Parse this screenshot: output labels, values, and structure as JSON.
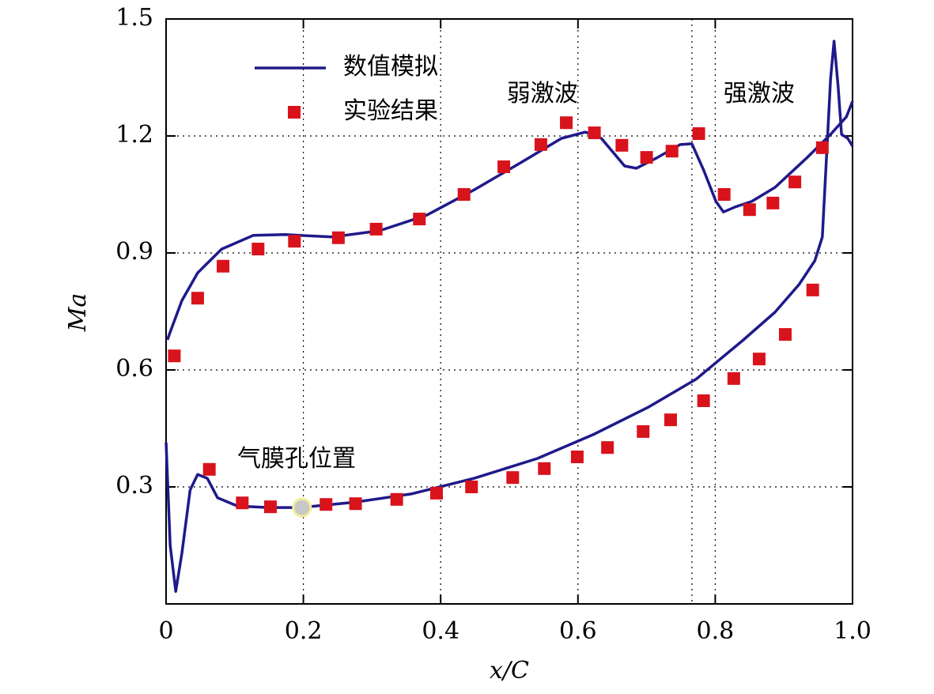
{
  "chart_data": {
    "type": "line",
    "xlabel": "x/C",
    "ylabel": "Ma",
    "xlim": [
      0,
      1
    ],
    "xticks": [
      0,
      0.2,
      0.4,
      0.6,
      0.8,
      {
        "value": 1,
        "label": "1.0"
      }
    ],
    "ylim": [
      0,
      1.5
    ],
    "yticks": [
      0.3,
      0.6,
      0.9,
      1.2,
      1.5
    ],
    "grid": true,
    "legend": "upper left",
    "vlines": [
      0.766
    ],
    "annotations": [
      {
        "text": "弱激波",
        "x": 0.6
      },
      {
        "text": "强激波",
        "x": 0.766
      },
      {
        "text": "气膜孔位置",
        "x": 0.198,
        "y": 0.247
      }
    ],
    "series": [
      {
        "name": "数值模拟",
        "type": "line",
        "color": "#1f1a8a",
        "x": [
          0.002,
          0.006,
          0.023,
          0.046,
          0.081,
          0.127,
          0.173,
          0.242,
          0.311,
          0.38,
          0.449,
          0.518,
          0.576,
          0.611,
          0.634,
          0.668,
          0.685,
          0.714,
          0.749,
          0.766,
          0.783,
          0.801,
          0.812,
          0.829,
          0.853,
          0.887,
          0.933,
          0.968,
          0.991,
          1.0,
          null,
          0,
          0.006,
          0.014,
          0.023,
          0.035,
          0.046,
          0.06,
          0.075,
          0.104,
          0.15,
          0.196,
          0.276,
          0.357,
          0.449,
          0.541,
          0.622,
          0.703,
          0.772,
          0.841,
          0.887,
          0.922,
          0.945,
          0.956,
          0.962,
          0.968,
          0.973,
          0.979,
          0.984,
          0.993,
          1.0
        ],
        "values": [
          0.677,
          0.697,
          0.778,
          0.849,
          0.91,
          0.945,
          0.947,
          0.941,
          0.957,
          0.997,
          1.062,
          1.133,
          1.194,
          1.21,
          1.194,
          1.123,
          1.117,
          1.143,
          1.178,
          1.18,
          1.113,
          1.032,
          1.005,
          1.018,
          1.032,
          1.068,
          1.143,
          1.204,
          1.249,
          1.289,
          null,
          0.414,
          0.15,
          0.032,
          0.13,
          0.292,
          0.332,
          0.322,
          0.272,
          0.251,
          0.247,
          0.247,
          0.261,
          0.282,
          0.322,
          0.373,
          0.434,
          0.505,
          0.576,
          0.677,
          0.748,
          0.819,
          0.88,
          0.941,
          1.143,
          1.346,
          1.443,
          1.326,
          1.204,
          1.194,
          1.174
        ]
      },
      {
        "name": "实验结果",
        "type": "scatter",
        "color": "#d9131c",
        "x": [
          0.012,
          0.046,
          0.083,
          0.134,
          0.187,
          0.251,
          0.306,
          0.369,
          0.434,
          0.492,
          0.546,
          0.583,
          0.624,
          0.664,
          0.7,
          0.737,
          0.776,
          0.813,
          0.85,
          0.884,
          0.916,
          0.956,
          0.063,
          0.111,
          0.152,
          0.233,
          0.276,
          0.336,
          0.394,
          0.445,
          0.505,
          0.551,
          0.599,
          0.643,
          0.695,
          0.735,
          0.783,
          0.827,
          0.864,
          0.902,
          0.942
        ],
        "values": [
          0.636,
          0.784,
          0.866,
          0.91,
          0.93,
          0.939,
          0.961,
          0.987,
          1.05,
          1.121,
          1.178,
          1.234,
          1.208,
          1.176,
          1.145,
          1.161,
          1.206,
          1.05,
          1.011,
          1.028,
          1.082,
          1.17,
          0.345,
          0.259,
          0.249,
          0.255,
          0.257,
          0.268,
          0.284,
          0.3,
          0.324,
          0.347,
          0.377,
          0.401,
          0.442,
          0.472,
          0.521,
          0.578,
          0.628,
          0.691,
          0.805
        ]
      }
    ]
  }
}
